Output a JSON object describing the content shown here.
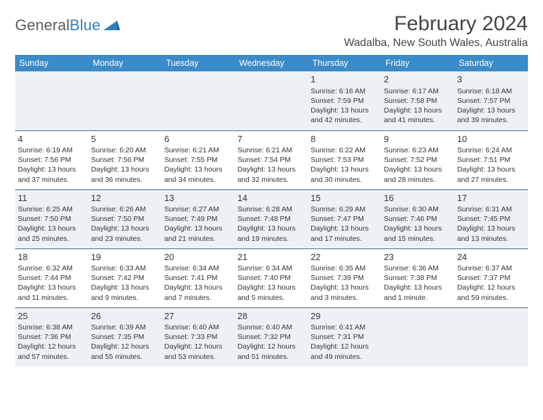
{
  "logo": {
    "word1": "General",
    "word2": "Blue"
  },
  "title": {
    "month": "February 2024",
    "location": "Wadalba, New South Wales, Australia"
  },
  "colors": {
    "header_bg": "#3b8bc9",
    "rule": "#3b6f99",
    "shade": "#eef1f3",
    "logo_blue": "#2f7fbf"
  },
  "weekdays": [
    "Sunday",
    "Monday",
    "Tuesday",
    "Wednesday",
    "Thursday",
    "Friday",
    "Saturday"
  ],
  "weeks": [
    [
      {
        "blank": true
      },
      {
        "blank": true
      },
      {
        "blank": true
      },
      {
        "blank": true
      },
      {
        "n": "1",
        "sr": "6:16 AM",
        "ss": "7:59 PM",
        "dl": "13 hours and 42 minutes."
      },
      {
        "n": "2",
        "sr": "6:17 AM",
        "ss": "7:58 PM",
        "dl": "13 hours and 41 minutes."
      },
      {
        "n": "3",
        "sr": "6:18 AM",
        "ss": "7:57 PM",
        "dl": "13 hours and 39 minutes."
      }
    ],
    [
      {
        "n": "4",
        "sr": "6:19 AM",
        "ss": "7:56 PM",
        "dl": "13 hours and 37 minutes."
      },
      {
        "n": "5",
        "sr": "6:20 AM",
        "ss": "7:56 PM",
        "dl": "13 hours and 36 minutes."
      },
      {
        "n": "6",
        "sr": "6:21 AM",
        "ss": "7:55 PM",
        "dl": "13 hours and 34 minutes."
      },
      {
        "n": "7",
        "sr": "6:21 AM",
        "ss": "7:54 PM",
        "dl": "13 hours and 32 minutes."
      },
      {
        "n": "8",
        "sr": "6:22 AM",
        "ss": "7:53 PM",
        "dl": "13 hours and 30 minutes."
      },
      {
        "n": "9",
        "sr": "6:23 AM",
        "ss": "7:52 PM",
        "dl": "13 hours and 28 minutes."
      },
      {
        "n": "10",
        "sr": "6:24 AM",
        "ss": "7:51 PM",
        "dl": "13 hours and 27 minutes."
      }
    ],
    [
      {
        "n": "11",
        "sr": "6:25 AM",
        "ss": "7:50 PM",
        "dl": "13 hours and 25 minutes."
      },
      {
        "n": "12",
        "sr": "6:26 AM",
        "ss": "7:50 PM",
        "dl": "13 hours and 23 minutes."
      },
      {
        "n": "13",
        "sr": "6:27 AM",
        "ss": "7:49 PM",
        "dl": "13 hours and 21 minutes."
      },
      {
        "n": "14",
        "sr": "6:28 AM",
        "ss": "7:48 PM",
        "dl": "13 hours and 19 minutes."
      },
      {
        "n": "15",
        "sr": "6:29 AM",
        "ss": "7:47 PM",
        "dl": "13 hours and 17 minutes."
      },
      {
        "n": "16",
        "sr": "6:30 AM",
        "ss": "7:46 PM",
        "dl": "13 hours and 15 minutes."
      },
      {
        "n": "17",
        "sr": "6:31 AM",
        "ss": "7:45 PM",
        "dl": "13 hours and 13 minutes."
      }
    ],
    [
      {
        "n": "18",
        "sr": "6:32 AM",
        "ss": "7:44 PM",
        "dl": "13 hours and 11 minutes."
      },
      {
        "n": "19",
        "sr": "6:33 AM",
        "ss": "7:42 PM",
        "dl": "13 hours and 9 minutes."
      },
      {
        "n": "20",
        "sr": "6:34 AM",
        "ss": "7:41 PM",
        "dl": "13 hours and 7 minutes."
      },
      {
        "n": "21",
        "sr": "6:34 AM",
        "ss": "7:40 PM",
        "dl": "13 hours and 5 minutes."
      },
      {
        "n": "22",
        "sr": "6:35 AM",
        "ss": "7:39 PM",
        "dl": "13 hours and 3 minutes."
      },
      {
        "n": "23",
        "sr": "6:36 AM",
        "ss": "7:38 PM",
        "dl": "13 hours and 1 minute."
      },
      {
        "n": "24",
        "sr": "6:37 AM",
        "ss": "7:37 PM",
        "dl": "12 hours and 59 minutes."
      }
    ],
    [
      {
        "n": "25",
        "sr": "6:38 AM",
        "ss": "7:36 PM",
        "dl": "12 hours and 57 minutes."
      },
      {
        "n": "26",
        "sr": "6:39 AM",
        "ss": "7:35 PM",
        "dl": "12 hours and 55 minutes."
      },
      {
        "n": "27",
        "sr": "6:40 AM",
        "ss": "7:33 PM",
        "dl": "12 hours and 53 minutes."
      },
      {
        "n": "28",
        "sr": "6:40 AM",
        "ss": "7:32 PM",
        "dl": "12 hours and 51 minutes."
      },
      {
        "n": "29",
        "sr": "6:41 AM",
        "ss": "7:31 PM",
        "dl": "12 hours and 49 minutes."
      },
      {
        "blank": true
      },
      {
        "blank": true
      }
    ]
  ],
  "labels": {
    "sunrise": "Sunrise: ",
    "sunset": "Sunset: ",
    "daylight": "Daylight: "
  }
}
